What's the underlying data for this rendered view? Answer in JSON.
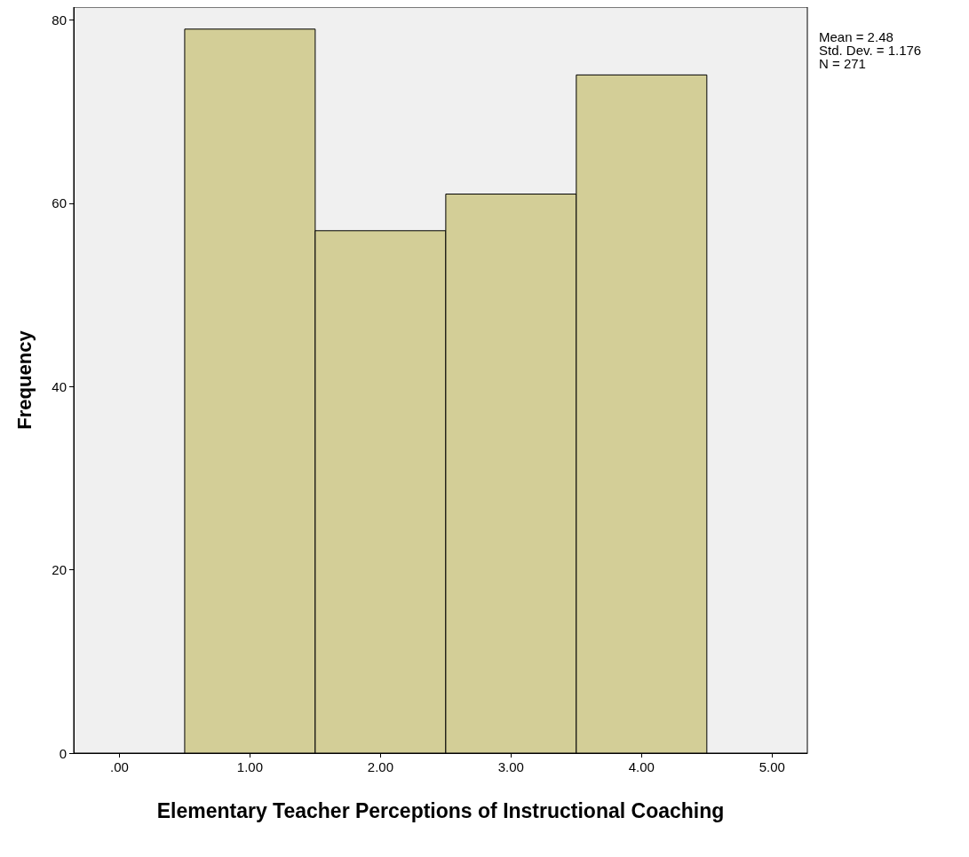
{
  "chart_data": {
    "type": "histogram",
    "xlabel": "Elementary Teacher Perceptions of Instructional Coaching",
    "ylabel": "Frequency",
    "bins": [
      0.5,
      1.5,
      2.5,
      3.5,
      4.5
    ],
    "values": [
      79,
      57,
      61,
      74
    ],
    "color": "#d3ce97",
    "xlim": [
      -0.35,
      5.27
    ],
    "xticks": [
      {
        "value": 0,
        "label": ".00"
      },
      {
        "value": 1,
        "label": "1.00"
      },
      {
        "value": 2,
        "label": "2.00"
      },
      {
        "value": 3,
        "label": "3.00"
      },
      {
        "value": 4,
        "label": "4.00"
      },
      {
        "value": 5,
        "label": "5.00"
      }
    ],
    "ylim": [
      0,
      81.4
    ],
    "yticks": [
      0,
      20,
      40,
      60,
      80
    ],
    "grid": false,
    "annotations": [
      "Mean = 2.48",
      "Std. Dev. = 1.176",
      "N = 271"
    ]
  }
}
